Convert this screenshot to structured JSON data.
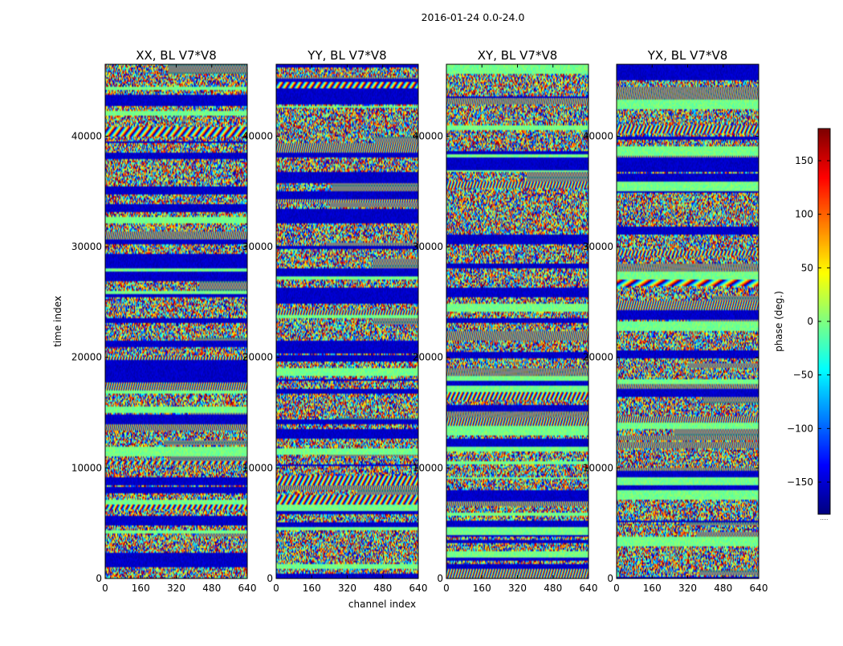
{
  "figure": {
    "suptitle": "2016-01-24 0.0-24.0",
    "ylabel": "time index",
    "xlabel": "channel index"
  },
  "chart_data": {
    "type": "heatmap",
    "colormap": "jet",
    "panels": [
      {
        "title": "XX, BL V7*V8",
        "show_ylabel": true,
        "seed": 11
      },
      {
        "title": "YY, BL V7*V8",
        "show_ylabel": false,
        "seed": 23
      },
      {
        "title": "XY, BL V7*V8",
        "show_ylabel": false,
        "seed": 37
      },
      {
        "title": "YX, BL V7*V8",
        "show_ylabel": false,
        "seed": 53
      }
    ],
    "xlim": [
      0,
      640
    ],
    "ylim": [
      0,
      46500
    ],
    "xticks": [
      0,
      160,
      320,
      480,
      640
    ],
    "yticks": [
      0,
      10000,
      20000,
      30000,
      40000
    ],
    "xlabel": "channel index",
    "ylabel": "time index",
    "colorbar": {
      "label": "phase (deg.)",
      "vmin": -180,
      "vmax": 180,
      "ticks": [
        -150,
        -100,
        -50,
        0,
        50,
        100,
        150
      ],
      "tick_labels": [
        "−150",
        "−100",
        "−50",
        "0",
        "50",
        "100",
        "150"
      ],
      "footnote": "....."
    }
  }
}
